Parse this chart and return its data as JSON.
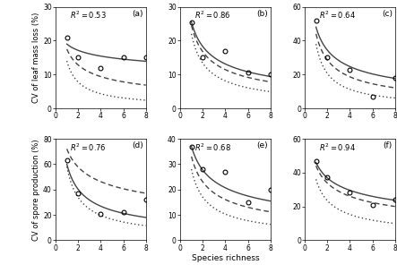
{
  "panels": [
    {
      "label": "(a)",
      "r2": "$R^2 = 0.53$",
      "ylim": [
        0,
        30
      ],
      "yticks": [
        0,
        10,
        20,
        30
      ],
      "data_points": [
        [
          1,
          21
        ],
        [
          2,
          15
        ],
        [
          4,
          12
        ],
        [
          6,
          15
        ],
        [
          8,
          15
        ]
      ],
      "solid_params": [
        19.0,
        -0.15
      ],
      "dashed_params": [
        17.5,
        -0.45
      ],
      "dotted_params": [
        14.0,
        -0.85
      ]
    },
    {
      "label": "(b)",
      "r2": "$R^2 = 0.86$",
      "ylim": [
        0,
        30
      ],
      "yticks": [
        0,
        10,
        20,
        30
      ],
      "data_points": [
        [
          1,
          25.5
        ],
        [
          2,
          15
        ],
        [
          4,
          17
        ],
        [
          6,
          10.5
        ],
        [
          8,
          10
        ]
      ],
      "solid_params": [
        25.5,
        -0.48
      ],
      "dashed_params": [
        24.5,
        -0.55
      ],
      "dotted_params": [
        22.0,
        -0.72
      ]
    },
    {
      "label": "(c)",
      "r2": "$R^2 = 0.64$",
      "ylim": [
        0,
        60
      ],
      "yticks": [
        0,
        20,
        40,
        60
      ],
      "data_points": [
        [
          1,
          52
        ],
        [
          2,
          30
        ],
        [
          4,
          23
        ],
        [
          6,
          7
        ],
        [
          8,
          18
        ]
      ],
      "solid_params": [
        48.0,
        -0.48
      ],
      "dashed_params": [
        44.0,
        -0.62
      ],
      "dotted_params": [
        38.0,
        -0.88
      ]
    },
    {
      "label": "(d)",
      "r2": "$R^2 = 0.76$",
      "ylim": [
        0,
        80
      ],
      "yticks": [
        0,
        20,
        40,
        60,
        80
      ],
      "data_points": [
        [
          1,
          63
        ],
        [
          2,
          37
        ],
        [
          4,
          21
        ],
        [
          6,
          22
        ],
        [
          8,
          32
        ]
      ],
      "solid_params": [
        60.0,
        -0.58
      ],
      "dashed_params": [
        72.0,
        -0.32
      ],
      "dotted_params": [
        58.0,
        -0.78
      ]
    },
    {
      "label": "(e)",
      "r2": "$R^2 = 0.68$",
      "ylim": [
        0,
        40
      ],
      "yticks": [
        0,
        10,
        20,
        30,
        40
      ],
      "data_points": [
        [
          1,
          37
        ],
        [
          2,
          28
        ],
        [
          4,
          27
        ],
        [
          6,
          15
        ],
        [
          8,
          20
        ]
      ],
      "solid_params": [
        37.0,
        -0.42
      ],
      "dashed_params": [
        33.0,
        -0.52
      ],
      "dotted_params": [
        28.0,
        -0.72
      ]
    },
    {
      "label": "(f)",
      "r2": "$R^2 = 0.94$",
      "ylim": [
        0,
        60
      ],
      "yticks": [
        0,
        20,
        40,
        60
      ],
      "data_points": [
        [
          1,
          47
        ],
        [
          2,
          37
        ],
        [
          4,
          28
        ],
        [
          6,
          21
        ],
        [
          8,
          24
        ]
      ],
      "solid_params": [
        46.0,
        -0.32
      ],
      "dashed_params": [
        44.0,
        -0.38
      ],
      "dotted_params": [
        36.0,
        -0.62
      ]
    }
  ],
  "row_labels": [
    "CV of leaf mass loss (%)",
    "CV of spore production (%)"
  ],
  "xlabel": "Species richness",
  "line_color": "#444444",
  "point_color": "#000000",
  "bg_color": "#ffffff"
}
